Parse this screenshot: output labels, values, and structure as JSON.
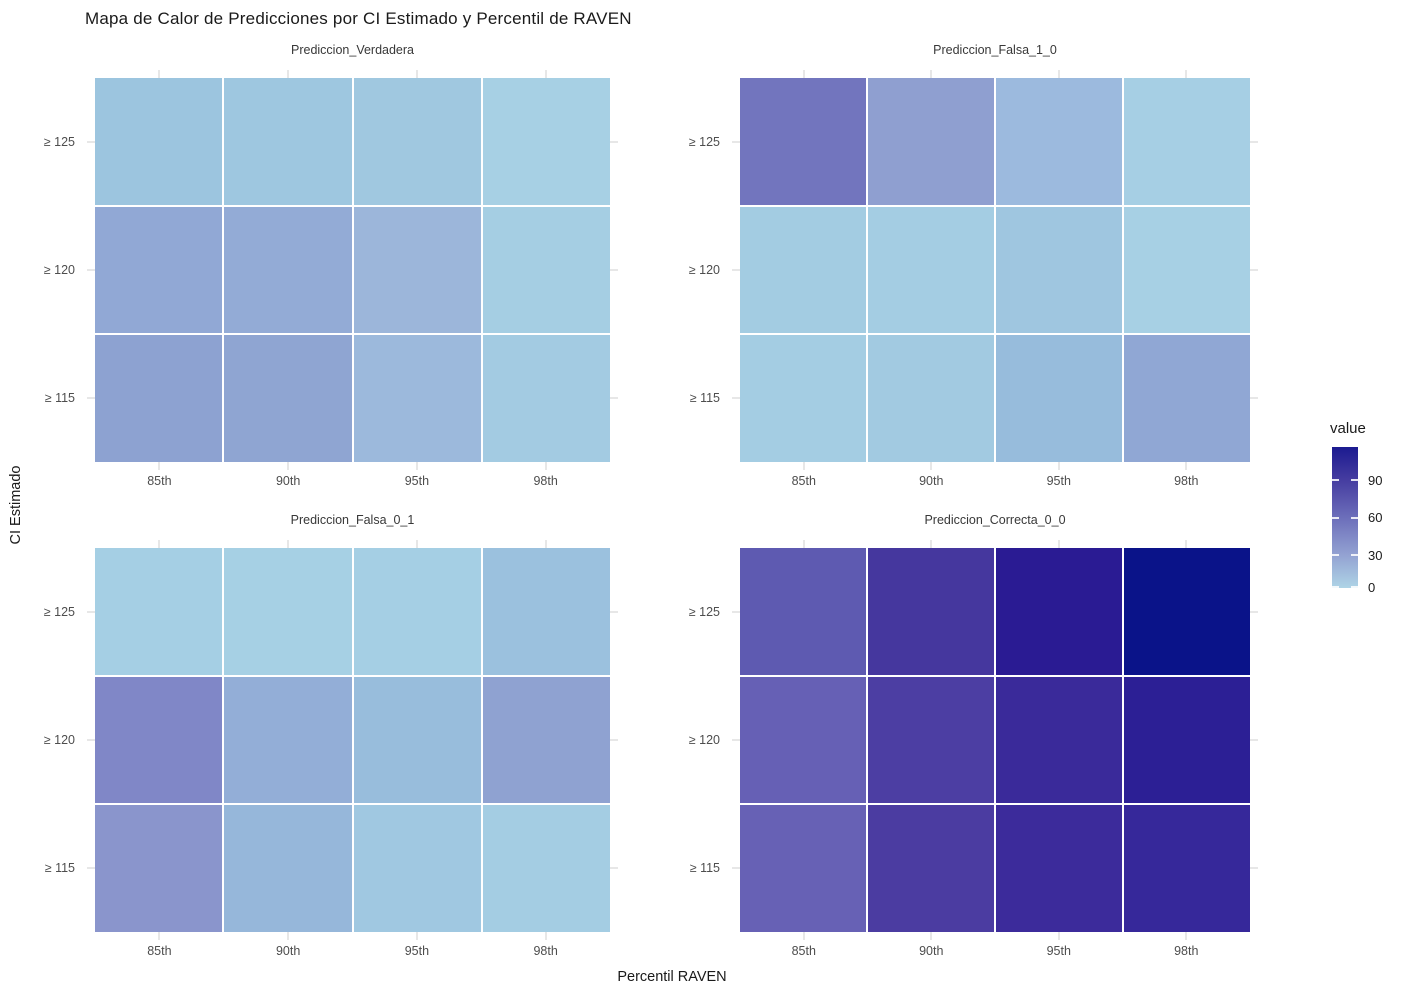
{
  "title": "Mapa de Calor de Predicciones por CI Estimado y Percentil de RAVEN",
  "axes": {
    "x_title": "Percentil RAVEN",
    "y_title": "CI Estimado",
    "x_ticks": [
      "85th",
      "90th",
      "95th",
      "98th"
    ],
    "y_ticks": [
      "≥ 125",
      "≥ 120",
      "≥ 115"
    ]
  },
  "legend": {
    "title": "value",
    "tick_labels": [
      "90",
      "60",
      "30",
      "0"
    ],
    "low_color": "#aed4e6",
    "high_color": "#1b1a90",
    "scale_min": 0,
    "scale_max": 118
  },
  "chart_data": {
    "type": "heatmap",
    "title": "Mapa de Calor de Predicciones por CI Estimado y Percentil de RAVEN",
    "xlabel": "Percentil RAVEN",
    "ylabel": "CI Estimado",
    "x_categories": [
      "85th",
      "90th",
      "95th",
      "98th"
    ],
    "y_categories": [
      "≥ 125",
      "≥ 120",
      "≥ 115"
    ],
    "value_range": [
      0,
      118
    ],
    "legend_title": "value",
    "legend_position": "right",
    "grid": true,
    "panels": [
      {
        "title": "Prediccion_Verdadera",
        "values": [
          [
            9,
            8,
            7,
            3
          ],
          [
            26,
            25,
            18,
            4
          ],
          [
            30,
            28,
            16,
            5
          ]
        ],
        "colors": [
          [
            "#9cc5df",
            "#9ec7e0",
            "#a0c8e0",
            "#a7d0e4"
          ],
          [
            "#91a8d5",
            "#93abd6",
            "#9cb6da",
            "#a5cee3"
          ],
          [
            "#8da2d1",
            "#8fa5d2",
            "#9cb9dc",
            "#a3cbe2"
          ]
        ]
      },
      {
        "title": "Prediccion_Falsa_1_0",
        "values": [
          [
            56,
            32,
            16,
            3
          ],
          [
            5,
            4,
            8,
            2
          ],
          [
            4,
            6,
            14,
            27
          ]
        ],
        "colors": [
          [
            "#7275be",
            "#8f9fd0",
            "#9cbade",
            "#a6cfe4"
          ],
          [
            "#a3cce2",
            "#a4cde3",
            "#9fc6e0",
            "#a7d0e4"
          ],
          [
            "#a4cde3",
            "#a2cae1",
            "#97bcdc",
            "#90a7d4"
          ]
        ]
      },
      {
        "title": "Prediccion_Falsa_0_1",
        "values": [
          [
            3,
            3,
            3,
            11
          ],
          [
            46,
            23,
            14,
            30
          ],
          [
            38,
            17,
            7,
            4
          ]
        ],
        "colors": [
          [
            "#a5cfe4",
            "#a6d0e4",
            "#a5cfe4",
            "#9bc1de"
          ],
          [
            "#8087c7",
            "#93aed7",
            "#98bddc",
            "#8fa2d1"
          ],
          [
            "#8a95cc",
            "#96b7da",
            "#a0c8e1",
            "#a4cde3"
          ]
        ]
      },
      {
        "title": "Prediccion_Correcta_0_0",
        "values": [
          [
            72,
            94,
            116,
            118
          ],
          [
            68,
            89,
            104,
            113
          ],
          [
            68,
            90,
            104,
            106
          ]
        ],
        "colors": [
          [
            "#5e5ab1",
            "#45379e",
            "#2a1b93",
            "#0a1389"
          ],
          [
            "#6660b5",
            "#4c3ea3",
            "#3a2a9a",
            "#2c1f95"
          ],
          [
            "#6761b5",
            "#4b3ca1",
            "#3c2b9b",
            "#36289a"
          ]
        ]
      }
    ]
  }
}
